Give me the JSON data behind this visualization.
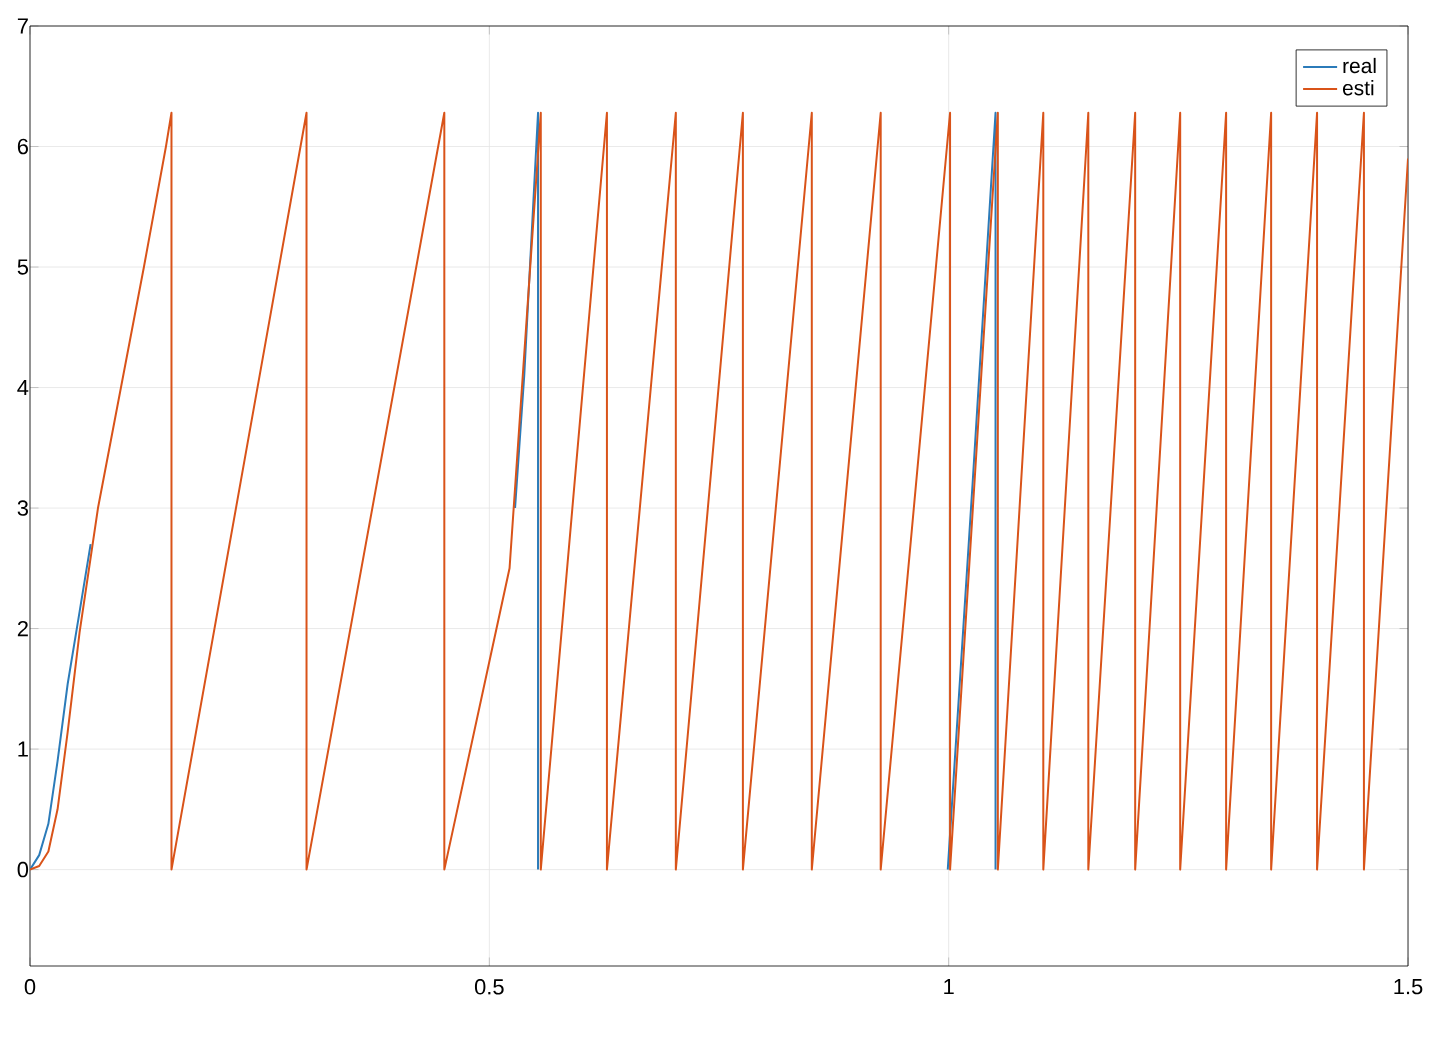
{
  "chart_data": {
    "type": "line",
    "xlim": [
      0,
      1.5
    ],
    "ylim": [
      -0.8,
      7
    ],
    "xticks": [
      0,
      0.5,
      1,
      1.5
    ],
    "yticks": [
      0,
      1,
      2,
      3,
      4,
      5,
      6,
      7
    ],
    "grid": true,
    "legend": "top right",
    "line_style": "solid",
    "marker": "none",
    "series": [
      {
        "name": "real",
        "color": "#2b7bb9",
        "x": [
          0,
          0.01,
          0.02,
          0.03,
          0.041,
          0.054,
          0.066,
          0.3,
          0.528,
          0.538,
          0.553,
          0.553,
          0.8,
          0.999,
          1.026,
          1.051,
          1.051
        ],
        "values": [
          0,
          0.12,
          0.38,
          0.9,
          1.54,
          2.14,
          2.7,
          null,
          3.0,
          4.1,
          6.28,
          0,
          null,
          0,
          3.2,
          6.28,
          0
        ]
      },
      {
        "name": "esti",
        "color": "#d95319",
        "x": [
          0,
          0.01,
          0.02,
          0.03,
          0.041,
          0.054,
          0.074,
          0.099,
          0.124,
          0.148,
          0.154,
          0.154,
          0.301,
          0.301,
          0.451,
          0.451,
          0.522,
          0.54,
          0.556,
          0.556,
          0.628,
          0.628,
          0.703,
          0.703,
          0.776,
          0.776,
          0.851,
          0.851,
          0.926,
          0.926,
          1.0015,
          1.0015,
          1.0535,
          1.0535,
          1.103,
          1.103,
          1.152,
          1.152,
          1.203,
          1.203,
          1.252,
          1.252,
          1.302,
          1.302,
          1.351,
          1.351,
          1.401,
          1.401,
          1.452,
          1.452,
          1.5
        ],
        "values": [
          0,
          0.03,
          0.15,
          0.5,
          1.14,
          1.97,
          3.0,
          4,
          5,
          6,
          6.28,
          0,
          6.28,
          0,
          6.28,
          0,
          2.5,
          4.5,
          6.28,
          0,
          6.28,
          0,
          6.28,
          0,
          6.28,
          0,
          6.28,
          0,
          6.28,
          0,
          6.28,
          0,
          6.28,
          0,
          6.28,
          0,
          6.28,
          0,
          6.28,
          0,
          6.28,
          0,
          6.28,
          0,
          6.28,
          0,
          6.28,
          0,
          6.28,
          0,
          5.9
        ]
      }
    ]
  }
}
